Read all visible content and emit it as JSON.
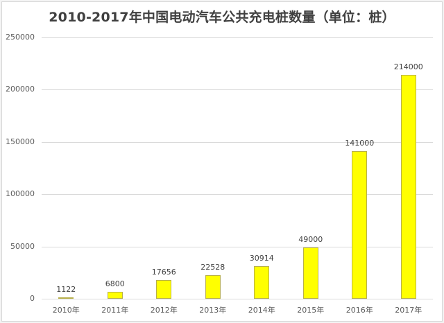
{
  "chart_data": {
    "type": "bar",
    "title": "2010-2017年中国电动汽车公共充电桩数量（单位：桩）",
    "categories": [
      "2010年",
      "2011年",
      "2012年",
      "2013年",
      "2014年",
      "2015年",
      "2016年",
      "2017年"
    ],
    "values": [
      1122,
      6800,
      17656,
      22528,
      30914,
      49000,
      141000,
      214000
    ],
    "data_labels": [
      "1122",
      "6800",
      "17656",
      "22528",
      "30914",
      "49000",
      "141000",
      "214000"
    ],
    "xlabel": "",
    "ylabel": "",
    "ylim": [
      0,
      250000
    ],
    "yticks": [
      "0",
      "50000",
      "100000",
      "150000",
      "200000",
      "250000"
    ],
    "ytick_values": [
      0,
      50000,
      100000,
      150000,
      200000,
      250000
    ],
    "grid": true,
    "legend": false,
    "colors": {
      "bar_fill": "#FFFF00",
      "bar_border": "#B8B04A",
      "gridline": "#D9D9D9"
    }
  }
}
